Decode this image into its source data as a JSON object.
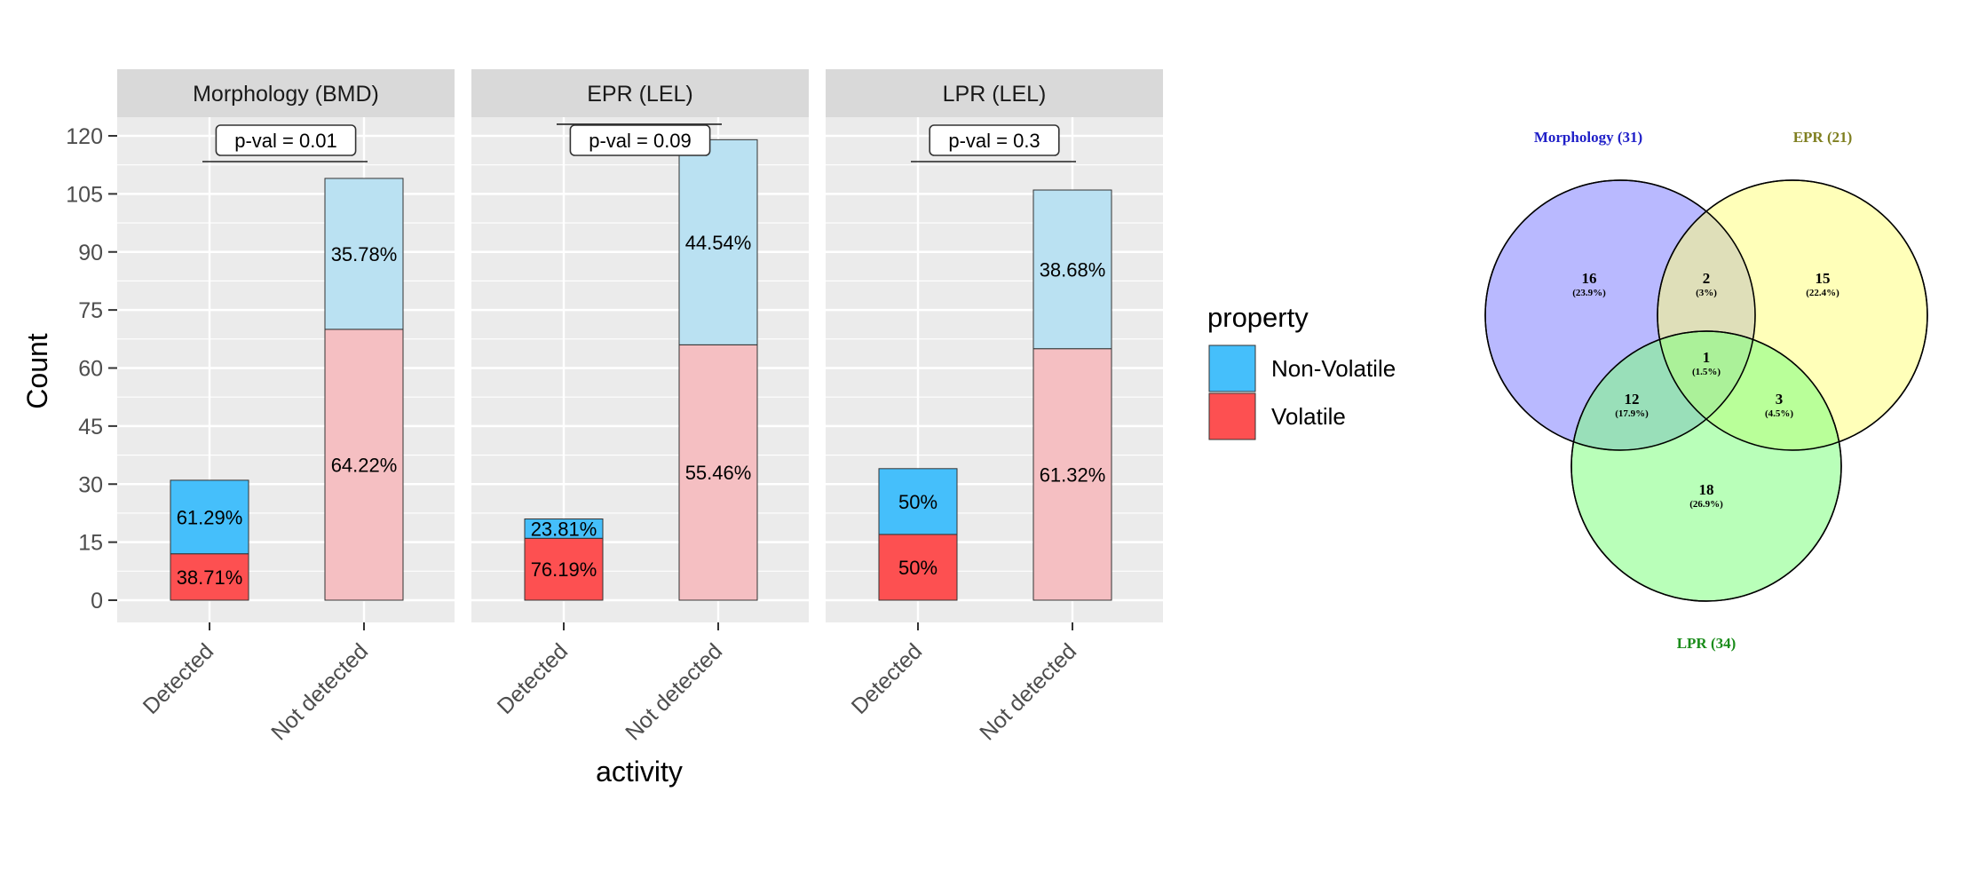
{
  "chart_data": [
    {
      "type": "bar",
      "stacked": true,
      "facets": [
        {
          "name": "Morphology (BMD)",
          "pvalue_label": "p-val = 0.01",
          "categories": [
            "Detected",
            "Not detected"
          ],
          "volatile": [
            12,
            70
          ],
          "non_volatile": [
            19,
            39
          ],
          "labels_volatile": [
            "38.71%",
            "64.22%"
          ],
          "labels_non_volatile": [
            "61.29%",
            "35.78%"
          ]
        },
        {
          "name": "EPR (LEL)",
          "pvalue_label": "p-val = 0.09",
          "categories": [
            "Detected",
            "Not detected"
          ],
          "volatile": [
            16,
            66
          ],
          "non_volatile": [
            5,
            53
          ],
          "labels_volatile": [
            "76.19%",
            "55.46%"
          ],
          "labels_non_volatile": [
            "23.81%",
            "44.54%"
          ]
        },
        {
          "name": "LPR (LEL)",
          "pvalue_label": "p-val = 0.3",
          "categories": [
            "Detected",
            "Not detected"
          ],
          "volatile": [
            17,
            65
          ],
          "non_volatile": [
            17,
            41
          ],
          "labels_volatile": [
            "50%",
            "61.32%"
          ],
          "labels_non_volatile": [
            "50%",
            "38.68%"
          ]
        }
      ],
      "ylabel": "Count",
      "xlabel": "activity",
      "ylim": [
        0,
        124
      ],
      "yticks": [
        0,
        15,
        30,
        45,
        60,
        75,
        90,
        105,
        120
      ],
      "legend": {
        "title": "property",
        "position": "right",
        "entries": [
          {
            "name": "Non-Volatile",
            "color": "#45bffb"
          },
          {
            "name": "Volatile",
            "color": "#fd5051"
          }
        ]
      },
      "colors": {
        "non_volatile_detected": "#45bffb",
        "non_volatile_not_detected": "#bae1f2",
        "volatile_detected": "#fd5051",
        "volatile_not_detected": "#f5bfc2"
      },
      "grid": true
    },
    {
      "type": "venn",
      "sets": [
        {
          "name": "Morphology (31)",
          "color": "#8080ff",
          "label_color": "#2020c8"
        },
        {
          "name": "EPR (21)",
          "color": "#ffff80",
          "label_color": "#7f7f20"
        },
        {
          "name": "LPR (34)",
          "color": "#80ff80",
          "label_color": "#1a8c1a"
        }
      ],
      "regions": [
        {
          "sets": [
            "Morphology"
          ],
          "count": "16",
          "pct": "(23.9%)"
        },
        {
          "sets": [
            "Morphology",
            "EPR"
          ],
          "count": "2",
          "pct": "(3%)"
        },
        {
          "sets": [
            "EPR"
          ],
          "count": "15",
          "pct": "(22.4%)"
        },
        {
          "sets": [
            "Morphology",
            "EPR",
            "LPR"
          ],
          "count": "1",
          "pct": "(1.5%)"
        },
        {
          "sets": [
            "Morphology",
            "LPR"
          ],
          "count": "12",
          "pct": "(17.9%)"
        },
        {
          "sets": [
            "EPR",
            "LPR"
          ],
          "count": "3",
          "pct": "(4.5%)"
        },
        {
          "sets": [
            "LPR"
          ],
          "count": "18",
          "pct": "(26.9%)"
        }
      ]
    }
  ]
}
